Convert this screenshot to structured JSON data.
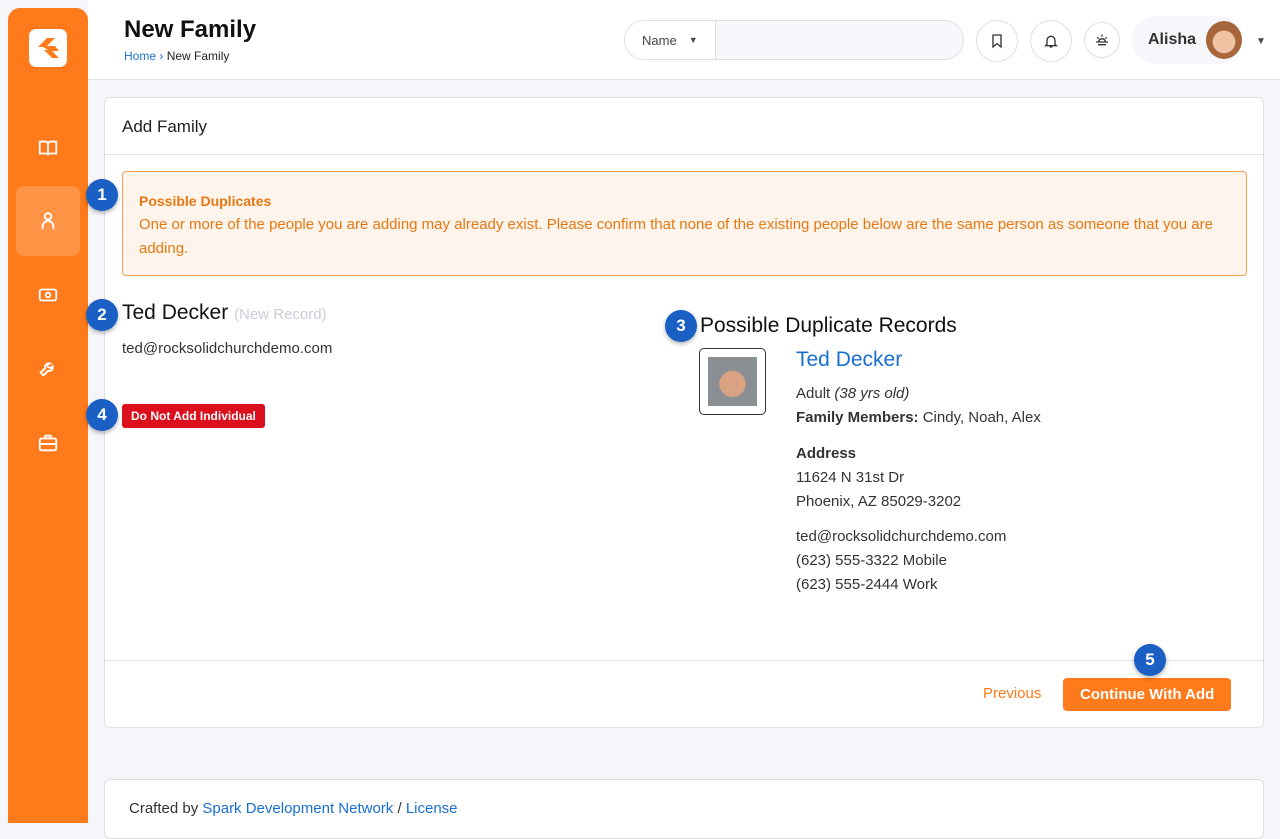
{
  "header": {
    "title": "New Family",
    "breadcrumb": [
      "Home",
      "New Family"
    ],
    "search_type": "Name",
    "search_value": "",
    "user_name": "Alisha"
  },
  "sidebar": {
    "items": [
      {
        "icon": "book-icon"
      },
      {
        "icon": "person-icon",
        "active": true
      },
      {
        "icon": "money-icon"
      },
      {
        "icon": "wrench-icon"
      },
      {
        "icon": "briefcase-icon"
      }
    ]
  },
  "card": {
    "title": "Add Family",
    "alert": {
      "title": "Possible Duplicates",
      "message": "One or more of the people you are adding may already exist. Please confirm that none of the existing people below are the same person as someone that you are adding."
    },
    "new_person": {
      "name": "Ted Decker",
      "tag": "(New Record)",
      "email": "ted@rocksolidchurchdemo.com",
      "do_not_add_label": "Do Not Add Individual"
    },
    "duplicates": {
      "heading": "Possible Duplicate Records",
      "records": [
        {
          "name": "Ted Decker",
          "role": "Adult",
          "age": "(38 yrs old)",
          "family_label": "Family Members:",
          "family": "Cindy, Noah, Alex",
          "address_label": "Address",
          "address1": "11624 N 31st Dr",
          "address2": "Phoenix, AZ 85029-3202",
          "email": "ted@rocksolidchurchdemo.com",
          "phone1": "(623) 555-3322 Mobile",
          "phone2": "(623) 555-2444 Work"
        }
      ]
    },
    "previous_label": "Previous",
    "continue_label": "Continue With Add"
  },
  "callouts": [
    "1",
    "2",
    "3",
    "4",
    "5"
  ],
  "footer": {
    "crafted": "Crafted by",
    "link1": "Spark Development Network",
    "sep": "/",
    "link2": "License"
  },
  "colors": {
    "accent": "#ff7a1a",
    "link": "#1a6fd1",
    "danger": "#dc0f1c",
    "callout": "#1a5fc4"
  }
}
